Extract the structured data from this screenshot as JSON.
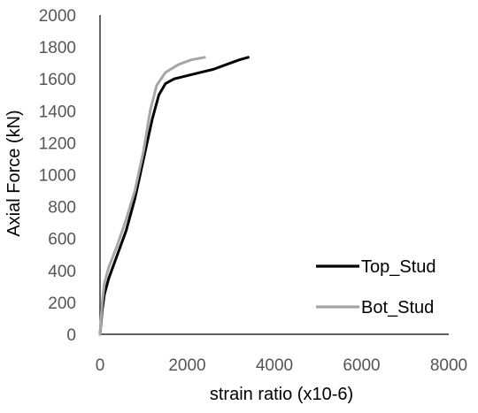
{
  "chart_data": {
    "type": "line",
    "title": "",
    "xlabel": "strain ratio (x10-6)",
    "ylabel": "Axial Force (kN)",
    "xlim": [
      0,
      8000
    ],
    "ylim": [
      0,
      2000
    ],
    "x_ticks": [
      "0",
      "2000",
      "4000",
      "6000",
      "8000"
    ],
    "y_ticks": [
      "0",
      "200",
      "400",
      "600",
      "800",
      "1000",
      "1200",
      "1400",
      "1600",
      "1800",
      "2000"
    ],
    "grid": false,
    "legend": "right",
    "series": [
      {
        "name": "Top_Stud",
        "color": "#000000",
        "x": [
          0,
          50,
          100,
          200,
          400,
          600,
          800,
          1000,
          1200,
          1350,
          1500,
          1700,
          2000,
          2300,
          2600,
          2900,
          3200,
          3400
        ],
        "y": [
          0,
          150,
          250,
          350,
          500,
          650,
          850,
          1100,
          1350,
          1500,
          1570,
          1600,
          1620,
          1640,
          1660,
          1690,
          1720,
          1735
        ]
      },
      {
        "name": "Bot_Stud",
        "color": "#a6a6a6",
        "x": [
          0,
          50,
          100,
          200,
          400,
          600,
          800,
          1000,
          1150,
          1300,
          1500,
          1800,
          2100,
          2400
        ],
        "y": [
          0,
          200,
          320,
          420,
          560,
          720,
          900,
          1150,
          1400,
          1560,
          1640,
          1690,
          1720,
          1735
        ]
      }
    ]
  }
}
